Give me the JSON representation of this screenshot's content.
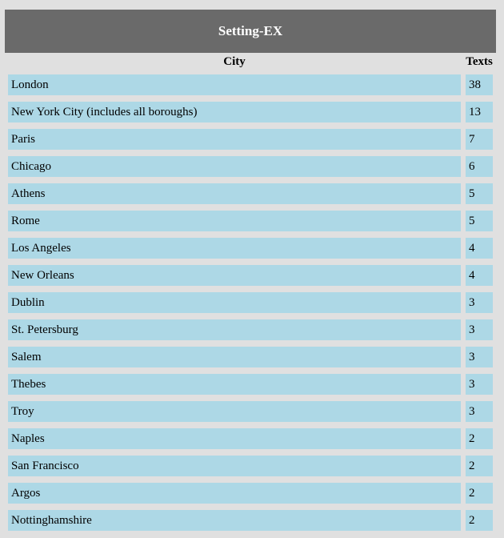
{
  "title": "Setting-EX",
  "headers": {
    "city": "City",
    "texts": "Texts"
  },
  "rows": [
    {
      "city": "London",
      "texts": "38"
    },
    {
      "city": "New York City (includes all boroughs)",
      "texts": "13"
    },
    {
      "city": "Paris",
      "texts": "7"
    },
    {
      "city": "Chicago",
      "texts": "6"
    },
    {
      "city": "Athens",
      "texts": "5"
    },
    {
      "city": "Rome",
      "texts": "5"
    },
    {
      "city": "Los Angeles",
      "texts": "4"
    },
    {
      "city": "New Orleans",
      "texts": "4"
    },
    {
      "city": "Dublin",
      "texts": "3"
    },
    {
      "city": "St. Petersburg",
      "texts": "3"
    },
    {
      "city": "Salem",
      "texts": "3"
    },
    {
      "city": "Thebes",
      "texts": "3"
    },
    {
      "city": "Troy",
      "texts": "3"
    },
    {
      "city": "Naples",
      "texts": "2"
    },
    {
      "city": "San Francisco",
      "texts": "2"
    },
    {
      "city": "Argos",
      "texts": "2"
    },
    {
      "city": "Nottinghamshire",
      "texts": "2"
    }
  ]
}
